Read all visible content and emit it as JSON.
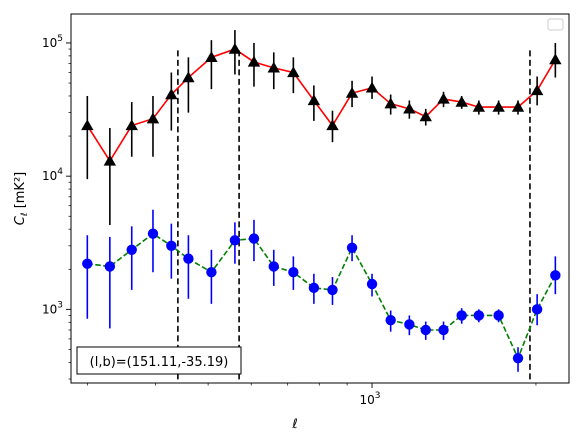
{
  "chart_data": {
    "type": "line",
    "xscale": "log",
    "yscale": "log",
    "xlabel": "ℓ",
    "ylabel": "C_ℓ  [mK²]",
    "xlim": [
      280,
      2300
    ],
    "ylim": [
      280,
      165000
    ],
    "x_tick_major": {
      "value": 1000,
      "base": "10",
      "exp": "3"
    },
    "y_ticks": [
      {
        "value": 1000,
        "base": "10",
        "exp": "3"
      },
      {
        "value": 10000,
        "base": "10",
        "exp": "4"
      },
      {
        "value": 100000,
        "base": "10",
        "exp": "5"
      }
    ],
    "x_minor_ticks": [
      300,
      400,
      500,
      600,
      700,
      800,
      900,
      2000
    ],
    "vlines": [
      440,
      570,
      1950
    ],
    "legend": {
      "placement": "upper right",
      "entries": []
    },
    "annotation": "(l,b)=(151.11,-35.19)",
    "series": [
      {
        "marker": "triangle",
        "line_color": "#ff0000",
        "line_style": "solid",
        "marker_color": "#000000",
        "error_color": "#000000",
        "points": [
          {
            "x": 300,
            "y": 24000,
            "lo": 9500,
            "hi": 40000
          },
          {
            "x": 330,
            "y": 13000,
            "lo": 4300,
            "hi": 23000
          },
          {
            "x": 362,
            "y": 24000,
            "lo": 14000,
            "hi": 36000
          },
          {
            "x": 396,
            "y": 27000,
            "lo": 14000,
            "hi": 40000
          },
          {
            "x": 428,
            "y": 41000,
            "lo": 22000,
            "hi": 60000
          },
          {
            "x": 460,
            "y": 55000,
            "lo": 30000,
            "hi": 78000
          },
          {
            "x": 507,
            "y": 78000,
            "lo": 45000,
            "hi": 105000
          },
          {
            "x": 560,
            "y": 90000,
            "lo": 58000,
            "hi": 125000
          },
          {
            "x": 607,
            "y": 72000,
            "lo": 47000,
            "hi": 100000
          },
          {
            "x": 660,
            "y": 65000,
            "lo": 45000,
            "hi": 85000
          },
          {
            "x": 717,
            "y": 60000,
            "lo": 42000,
            "hi": 78000
          },
          {
            "x": 782,
            "y": 37000,
            "lo": 26000,
            "hi": 48000
          },
          {
            "x": 846,
            "y": 24000,
            "lo": 18000,
            "hi": 31000
          },
          {
            "x": 919,
            "y": 42000,
            "lo": 33000,
            "hi": 52000
          },
          {
            "x": 1000,
            "y": 46000,
            "lo": 38000,
            "hi": 56000
          },
          {
            "x": 1082,
            "y": 35000,
            "lo": 29000,
            "hi": 41000
          },
          {
            "x": 1171,
            "y": 32000,
            "lo": 27000,
            "hi": 37000
          },
          {
            "x": 1255,
            "y": 28000,
            "lo": 24000,
            "hi": 32000
          },
          {
            "x": 1353,
            "y": 38000,
            "lo": 33000,
            "hi": 43000
          },
          {
            "x": 1461,
            "y": 36000,
            "lo": 32000,
            "hi": 40000
          },
          {
            "x": 1571,
            "y": 33000,
            "lo": 29000,
            "hi": 37000
          },
          {
            "x": 1708,
            "y": 33000,
            "lo": 29000,
            "hi": 37000
          },
          {
            "x": 1854,
            "y": 33000,
            "lo": 29000,
            "hi": 37000
          },
          {
            "x": 2010,
            "y": 44000,
            "lo": 34000,
            "hi": 56000
          },
          {
            "x": 2171,
            "y": 75000,
            "lo": 55000,
            "hi": 100000
          }
        ]
      },
      {
        "marker": "circle",
        "line_color": "#008000",
        "line_style": "dashed",
        "marker_color": "#0000ff",
        "error_color": "#0000ff",
        "points": [
          {
            "x": 300,
            "y": 2200,
            "lo": 850,
            "hi": 3600
          },
          {
            "x": 330,
            "y": 2100,
            "lo": 720,
            "hi": 3500
          },
          {
            "x": 362,
            "y": 2800,
            "lo": 1400,
            "hi": 4200
          },
          {
            "x": 396,
            "y": 3700,
            "lo": 1900,
            "hi": 5600
          },
          {
            "x": 428,
            "y": 3000,
            "lo": 1700,
            "hi": 4400
          },
          {
            "x": 460,
            "y": 2400,
            "lo": 1200,
            "hi": 3600
          },
          {
            "x": 507,
            "y": 1900,
            "lo": 1100,
            "hi": 2800
          },
          {
            "x": 560,
            "y": 3300,
            "lo": 2200,
            "hi": 4500
          },
          {
            "x": 607,
            "y": 3400,
            "lo": 2300,
            "hi": 4700
          },
          {
            "x": 660,
            "y": 2100,
            "lo": 1500,
            "hi": 2800
          },
          {
            "x": 717,
            "y": 1900,
            "lo": 1400,
            "hi": 2500
          },
          {
            "x": 782,
            "y": 1450,
            "lo": 1100,
            "hi": 1850
          },
          {
            "x": 846,
            "y": 1400,
            "lo": 1080,
            "hi": 1750
          },
          {
            "x": 919,
            "y": 2900,
            "lo": 2300,
            "hi": 3600
          },
          {
            "x": 1000,
            "y": 1550,
            "lo": 1250,
            "hi": 1850
          },
          {
            "x": 1082,
            "y": 830,
            "lo": 680,
            "hi": 980
          },
          {
            "x": 1171,
            "y": 770,
            "lo": 640,
            "hi": 900
          },
          {
            "x": 1255,
            "y": 700,
            "lo": 590,
            "hi": 810
          },
          {
            "x": 1353,
            "y": 700,
            "lo": 590,
            "hi": 810
          },
          {
            "x": 1461,
            "y": 900,
            "lo": 780,
            "hi": 1020
          },
          {
            "x": 1571,
            "y": 900,
            "lo": 800,
            "hi": 1000
          },
          {
            "x": 1708,
            "y": 900,
            "lo": 800,
            "hi": 1000
          },
          {
            "x": 1854,
            "y": 430,
            "lo": 340,
            "hi": 520
          },
          {
            "x": 2010,
            "y": 1000,
            "lo": 760,
            "hi": 1300
          },
          {
            "x": 2171,
            "y": 1800,
            "lo": 1300,
            "hi": 2500
          }
        ]
      }
    ]
  }
}
